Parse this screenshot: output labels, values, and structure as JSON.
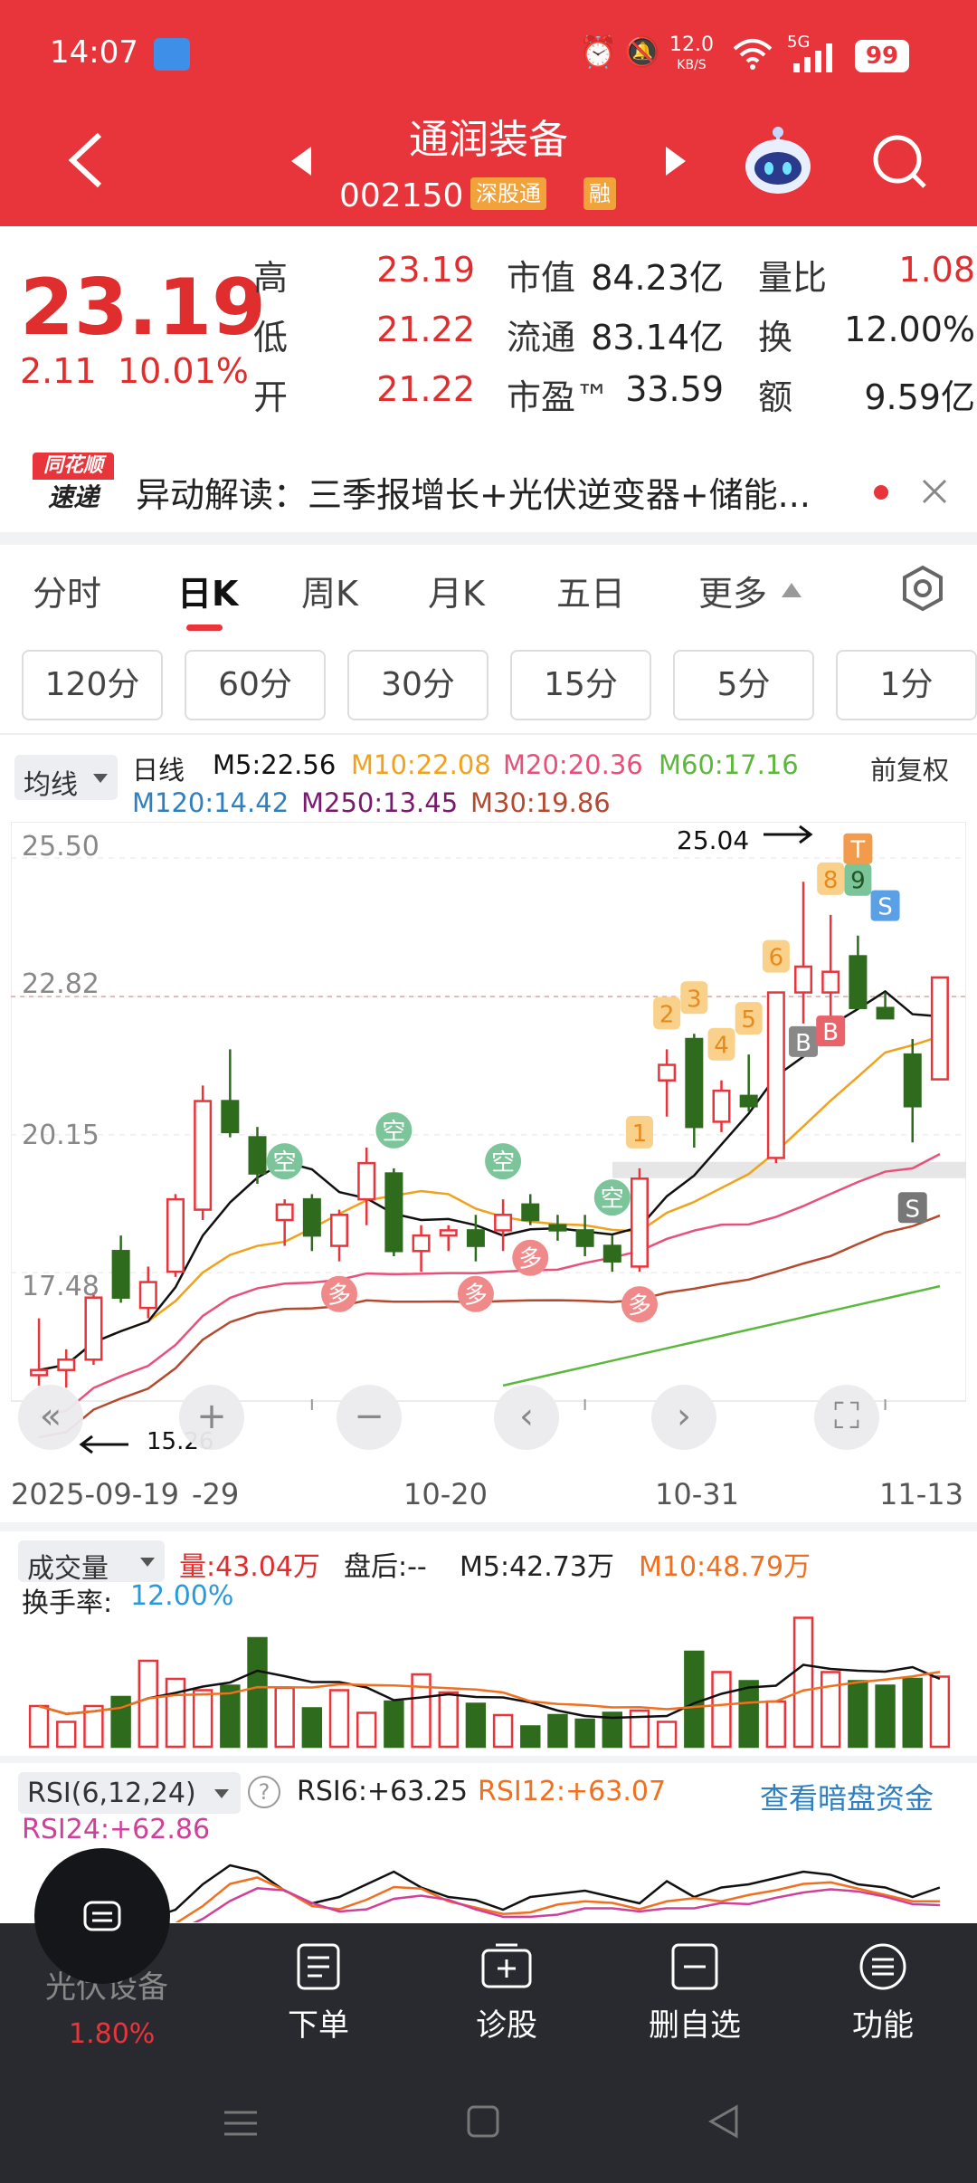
{
  "status_bar": {
    "time": "14:07",
    "speed_num": "12.0",
    "speed_unit": "KB/S",
    "network": "5G",
    "battery": "99"
  },
  "header": {
    "stock_name": "通润装备",
    "stock_code": "002150",
    "tag_sz": "深股通",
    "tag_margin": "融"
  },
  "quote": {
    "price": "23.19",
    "change": "2.11",
    "change_pct": "10.01%",
    "high_label": "高",
    "high": "23.19",
    "low_label": "低",
    "low": "21.22",
    "open_label": "开",
    "open": "21.22",
    "mcap_label": "市值",
    "mcap": "84.23亿",
    "float_label": "流通",
    "float": "83.14亿",
    "pe_label": "市盈™",
    "pe": "33.59",
    "vol_ratio_label": "量比",
    "vol_ratio": "1.08",
    "turnover_label": "换",
    "turnover": "12.00%",
    "amount_label": "额",
    "amount": "9.59亿"
  },
  "news": {
    "brand_top": "同花顺",
    "brand_bottom": "速递",
    "text": "异动解读：三季报增长+光伏逆变器+储能..."
  },
  "tabs": [
    "分时",
    "日K",
    "周K",
    "月K",
    "五日",
    "更多"
  ],
  "active_tab": "日K",
  "minute_buttons": [
    "120分",
    "60分",
    "30分",
    "15分",
    "5分",
    "1分"
  ],
  "indicator_bar": {
    "selector": "均线",
    "period": "日线",
    "adjust": "前复权",
    "m5": "M5:22.56",
    "m10": "M10:22.08",
    "m20": "M20:20.36",
    "m60": "M60:17.16",
    "m120": "M120:14.42",
    "m250": "M250:13.45",
    "m30": "M30:19.86"
  },
  "chart_labels": {
    "high_mark": "25.04",
    "low_mark": "15.26",
    "y_ticks": [
      "25.50",
      "22.82",
      "20.15",
      "17.48"
    ],
    "x_ticks": [
      "2025-09-19",
      "-29",
      "10-20",
      "10-31",
      "11-13"
    ]
  },
  "chart_colors": {
    "up": "#e8353b",
    "down": "#2e6b1c",
    "m5": "#111111",
    "m10": "#f0a21c",
    "m20": "#e8507a",
    "m30": "#b5492f",
    "m60": "#5cb83c"
  },
  "chart_data": {
    "type": "candlestick",
    "x": [
      "2025-09-19",
      "09-22",
      "09-23",
      "09-24",
      "09-25",
      "09-26",
      "09-29",
      "09-30",
      "10-09",
      "10-10",
      "10-13",
      "10-14",
      "10-15",
      "10-16",
      "10-17",
      "10-20",
      "10-21",
      "10-22",
      "10-23",
      "10-24",
      "10-27",
      "10-28",
      "10-29",
      "10-30",
      "10-31",
      "11-03",
      "11-04",
      "11-05",
      "11-06",
      "11-07",
      "11-10",
      "11-11",
      "11-12",
      "11-13"
    ],
    "series": [
      {
        "o": 15.5,
        "h": 16.6,
        "l": 15.3,
        "c": 15.6
      },
      {
        "o": 15.6,
        "h": 16.0,
        "l": 15.26,
        "c": 15.8
      },
      {
        "o": 15.8,
        "h": 17.1,
        "l": 15.7,
        "c": 17.0
      },
      {
        "o": 17.9,
        "h": 18.2,
        "l": 16.9,
        "c": 17.0
      },
      {
        "o": 16.8,
        "h": 17.6,
        "l": 16.6,
        "c": 17.3
      },
      {
        "o": 17.5,
        "h": 19.0,
        "l": 17.4,
        "c": 18.9
      },
      {
        "o": 18.7,
        "h": 21.1,
        "l": 18.5,
        "c": 20.8
      },
      {
        "o": 20.8,
        "h": 21.8,
        "l": 20.1,
        "c": 20.2
      },
      {
        "o": 20.1,
        "h": 20.3,
        "l": 19.2,
        "c": 19.4
      },
      {
        "o": 18.5,
        "h": 18.9,
        "l": 18.0,
        "c": 18.8
      },
      {
        "o": 18.9,
        "h": 19.0,
        "l": 17.9,
        "c": 18.2
      },
      {
        "o": 18.0,
        "h": 18.7,
        "l": 17.7,
        "c": 18.6
      },
      {
        "o": 18.9,
        "h": 19.9,
        "l": 18.4,
        "c": 19.6
      },
      {
        "o": 19.4,
        "h": 19.5,
        "l": 17.8,
        "c": 17.9
      },
      {
        "o": 17.9,
        "h": 18.4,
        "l": 17.5,
        "c": 18.2
      },
      {
        "o": 18.2,
        "h": 18.4,
        "l": 17.9,
        "c": 18.3
      },
      {
        "o": 18.3,
        "h": 18.6,
        "l": 17.7,
        "c": 18.0
      },
      {
        "o": 18.3,
        "h": 18.9,
        "l": 17.9,
        "c": 18.6
      },
      {
        "o": 18.8,
        "h": 19.0,
        "l": 18.4,
        "c": 18.5
      },
      {
        "o": 18.4,
        "h": 18.6,
        "l": 18.1,
        "c": 18.3
      },
      {
        "o": 18.3,
        "h": 18.6,
        "l": 17.8,
        "c": 18.0
      },
      {
        "o": 18.0,
        "h": 18.2,
        "l": 17.5,
        "c": 17.7
      },
      {
        "o": 17.6,
        "h": 19.5,
        "l": 17.5,
        "c": 19.3
      },
      {
        "o": 21.2,
        "h": 21.8,
        "l": 20.5,
        "c": 21.5
      },
      {
        "o": 22.0,
        "h": 22.1,
        "l": 19.9,
        "c": 20.3
      },
      {
        "o": 20.4,
        "h": 21.2,
        "l": 20.2,
        "c": 21.0
      },
      {
        "o": 20.9,
        "h": 21.7,
        "l": 20.6,
        "c": 20.7
      },
      {
        "o": 19.7,
        "h": 22.9,
        "l": 19.6,
        "c": 22.9
      },
      {
        "o": 22.9,
        "h": 25.04,
        "l": 22.3,
        "c": 23.4
      },
      {
        "o": 22.9,
        "h": 24.4,
        "l": 22.4,
        "c": 23.3
      },
      {
        "o": 23.6,
        "h": 24.0,
        "l": 22.6,
        "c": 22.6
      },
      {
        "o": 22.6,
        "h": 22.9,
        "l": 22.4,
        "c": 22.4
      },
      {
        "o": 21.7,
        "h": 22.0,
        "l": 20.0,
        "c": 20.7
      },
      {
        "o": 21.22,
        "h": 23.19,
        "l": 21.22,
        "c": 23.19
      }
    ],
    "markers": [
      {
        "label": "空",
        "i": 9,
        "kind": "short"
      },
      {
        "label": "空",
        "i": 13,
        "kind": "short"
      },
      {
        "label": "空",
        "i": 17,
        "kind": "short"
      },
      {
        "label": "空",
        "i": 21,
        "kind": "short"
      },
      {
        "label": "多",
        "i": 11,
        "kind": "long"
      },
      {
        "label": "多",
        "i": 16,
        "kind": "long"
      },
      {
        "label": "多",
        "i": 18,
        "kind": "long"
      },
      {
        "label": "多",
        "i": 22,
        "kind": "long"
      },
      {
        "label": "1",
        "i": 22,
        "kind": "count"
      },
      {
        "label": "2",
        "i": 23,
        "kind": "count"
      },
      {
        "label": "3",
        "i": 24,
        "kind": "count"
      },
      {
        "label": "4",
        "i": 25,
        "kind": "count"
      },
      {
        "label": "5",
        "i": 26,
        "kind": "count"
      },
      {
        "label": "6",
        "i": 27,
        "kind": "count"
      },
      {
        "label": "8",
        "i": 29,
        "kind": "count"
      },
      {
        "label": "9",
        "i": 30,
        "kind": "count9"
      },
      {
        "label": "T",
        "i": 30,
        "kind": "t"
      },
      {
        "label": "S",
        "i": 31,
        "kind": "s_blue"
      },
      {
        "label": "B",
        "i": 28,
        "kind": "b_gray"
      },
      {
        "label": "B",
        "i": 29,
        "kind": "b_red"
      },
      {
        "label": "S",
        "i": 32,
        "kind": "s_gray"
      }
    ],
    "ylim": [
      15.0,
      26.2
    ]
  },
  "volume": {
    "selector": "成交量",
    "vol": "量:43.04万",
    "after": "盘后:--",
    "m5": "M5:42.73万",
    "m10": "M10:48.79万",
    "turnover_label": "换手率:",
    "turnover": "12.00%",
    "bars": [
      18,
      11,
      18,
      22,
      38,
      30,
      25,
      27,
      48,
      26,
      17,
      25,
      15,
      20,
      32,
      24,
      19,
      14,
      9,
      14,
      12,
      15,
      16,
      11,
      42,
      33,
      29,
      20,
      57,
      33,
      29,
      27,
      30,
      31
    ]
  },
  "rsi": {
    "selector": "RSI(6,12,24)",
    "rsi6": "RSI6:+63.25",
    "rsi12": "RSI12:+63.07",
    "rsi24": "RSI24:+62.86",
    "link": "查看暗盘资金"
  },
  "bottom_nav": {
    "sector_name": "光伏设备",
    "sector_change": "1.80%",
    "items": [
      "下单",
      "诊股",
      "删自选",
      "功能"
    ]
  }
}
